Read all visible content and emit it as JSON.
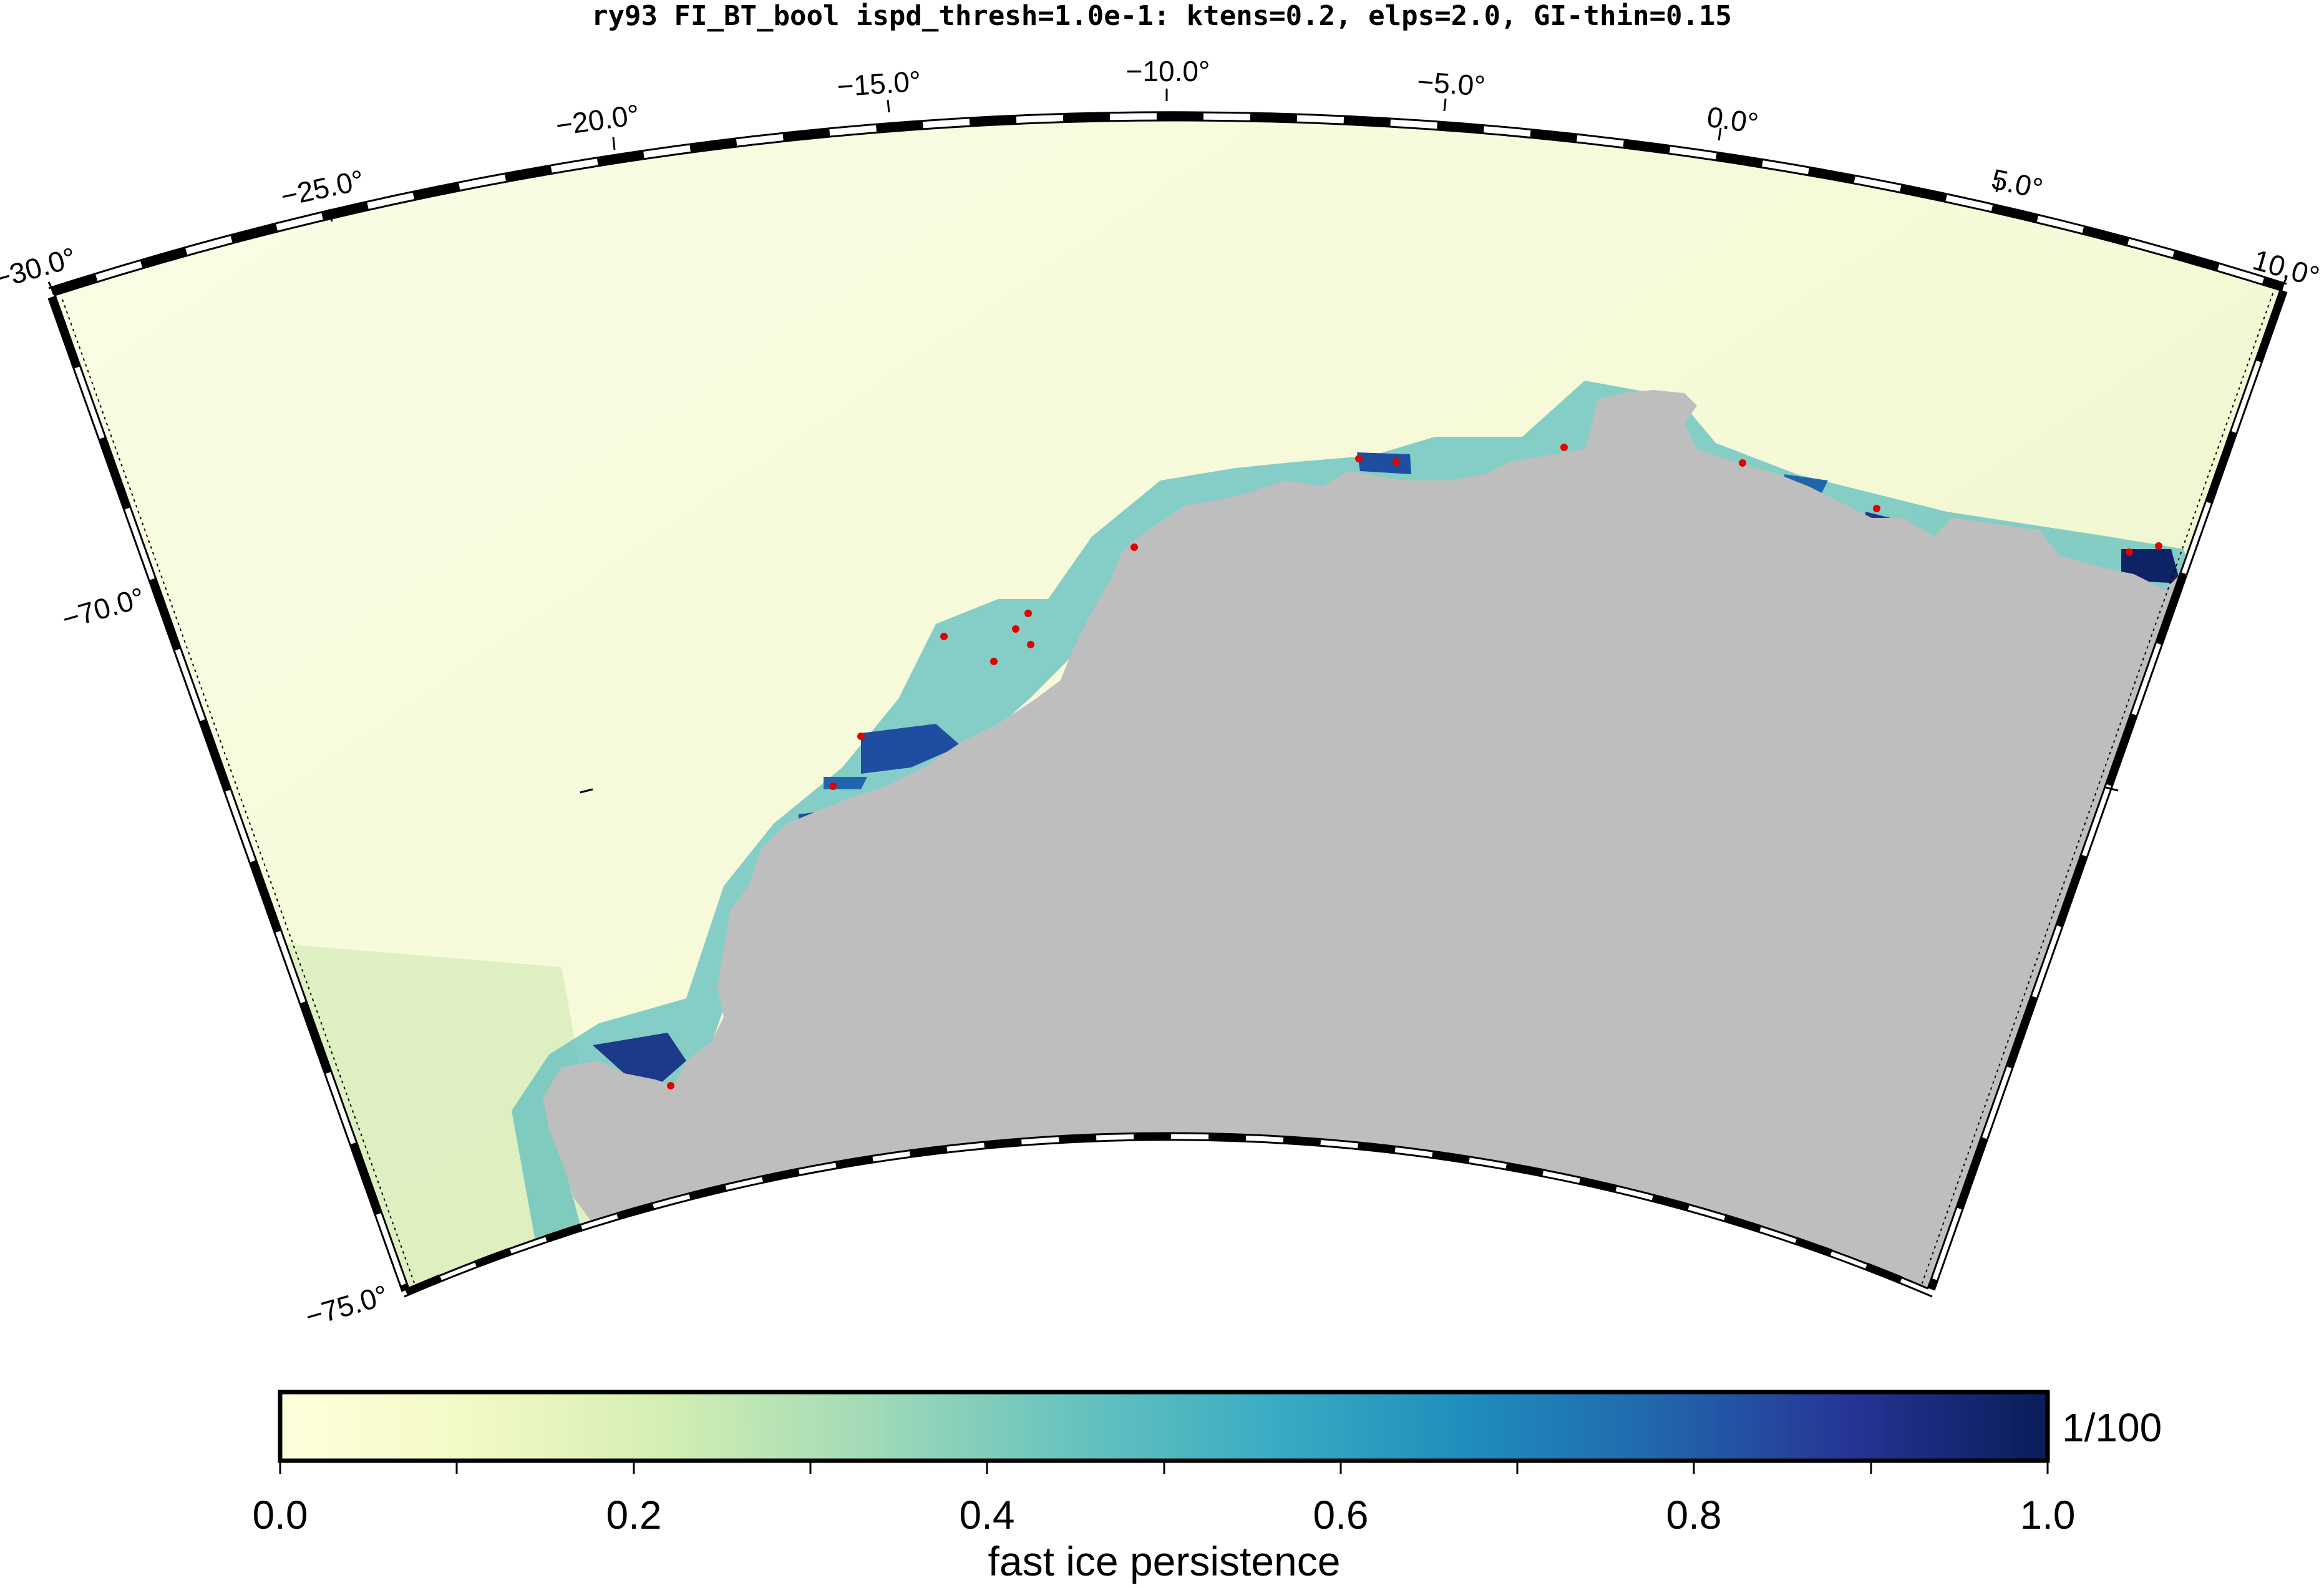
{
  "title": "ry93 FI_BT_bool ispd_thresh=1.0e-1: ktens=0.2, elps=2.0, GI-thin=0.15",
  "map": {
    "projection": "polar stereographic wedge",
    "longitude_labels": [
      "−30.0°",
      "−25.0°",
      "−20.0°",
      "−15.0°",
      "−10.0°",
      "−5.0°",
      "0.0°",
      "5.0°",
      "10.0°"
    ],
    "latitude_labels": [
      "−70.0°",
      "−75.0°"
    ],
    "land_color": "#bebebe",
    "ocean_low_color": "#fbfde8",
    "grounded_iceberg_marker_color": "#e60000"
  },
  "colorbar": {
    "label": "fast ice persistence",
    "unit_label": "1/100",
    "tick_labels": [
      "0.0",
      "0.2",
      "0.4",
      "0.6",
      "0.8",
      "1.0"
    ],
    "range": [
      0.0,
      1.0
    ],
    "colors": [
      "#ffffdd",
      "#f2f9c4",
      "#d3eeb3",
      "#a3dbb7",
      "#6cc5be",
      "#3aacc3",
      "#1f8ebd",
      "#2166ac",
      "#253494",
      "#081d58"
    ]
  }
}
